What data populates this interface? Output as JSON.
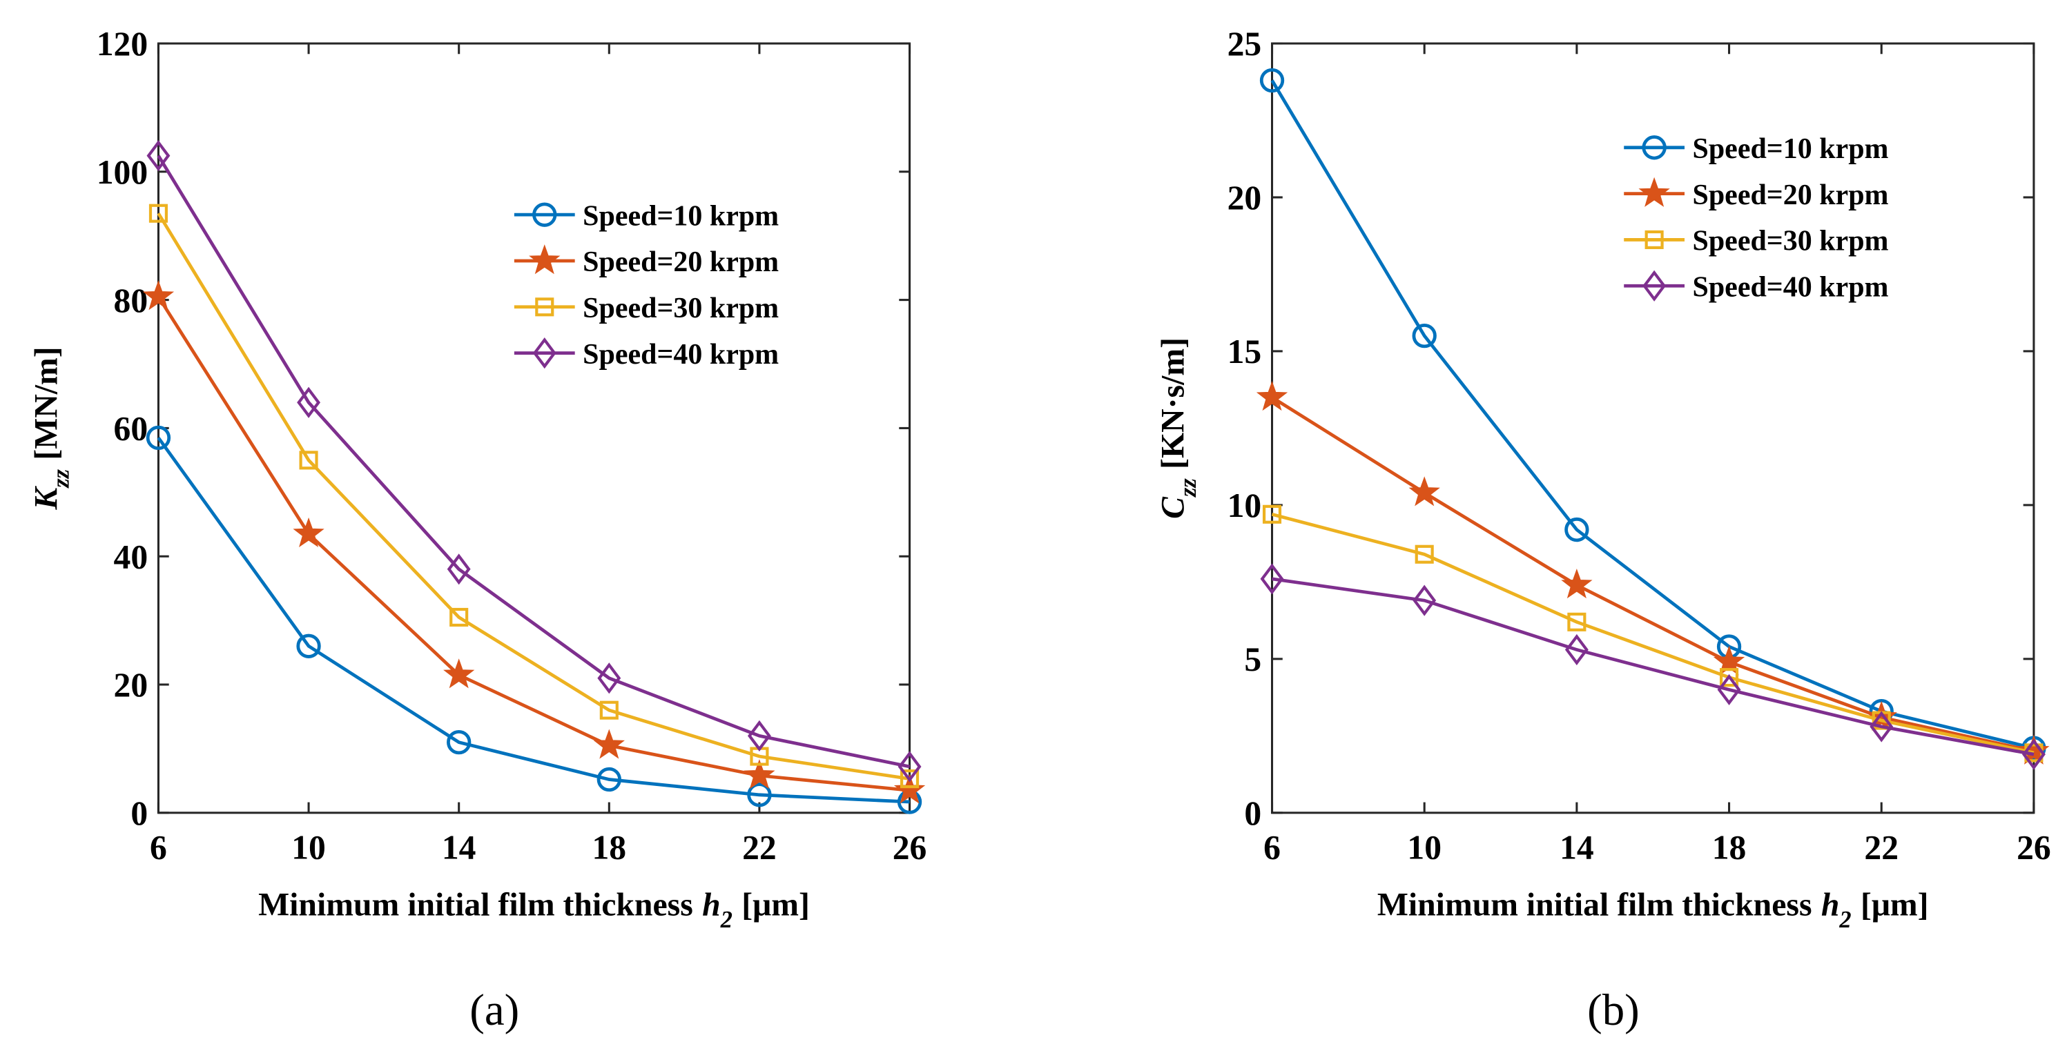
{
  "chart_data": [
    {
      "type": "line",
      "panel_label": "(a)",
      "xlabel": {
        "text": "Minimum initial film thickness",
        "symbol": "h",
        "subscript": "2",
        "unit": "[μm]"
      },
      "ylabel": {
        "symbol": "K",
        "subscript": "zz",
        "unit": "[MN/m]"
      },
      "x": [
        6,
        10,
        14,
        18,
        22,
        26
      ],
      "xlim": [
        6,
        26
      ],
      "xticks": [
        6,
        10,
        14,
        18,
        22,
        26
      ],
      "ylim": [
        0,
        120
      ],
      "yticks": [
        0,
        20,
        40,
        60,
        80,
        100,
        120
      ],
      "legend": "northeast",
      "series": [
        {
          "name": "Speed=10 krpm",
          "color": "#0072BD",
          "marker": "circle",
          "values": [
            58.5,
            26,
            11,
            5.2,
            2.8,
            1.7
          ]
        },
        {
          "name": "Speed=20 krpm",
          "color": "#D95319",
          "marker": "star",
          "values": [
            80.5,
            43.5,
            21.5,
            10.5,
            5.8,
            3.5
          ]
        },
        {
          "name": "Speed=30 krpm",
          "color": "#EDB120",
          "marker": "square",
          "values": [
            93.5,
            55,
            30.5,
            16,
            8.8,
            5.3
          ]
        },
        {
          "name": "Speed=40 krpm",
          "color": "#7E2F8E",
          "marker": "diamond",
          "values": [
            102.5,
            64,
            38,
            21,
            12,
            7.2
          ]
        }
      ]
    },
    {
      "type": "line",
      "panel_label": "(b)",
      "xlabel": {
        "text": "Minimum initial film thickness",
        "symbol": "h",
        "subscript": "2",
        "unit": "[μm]"
      },
      "ylabel": {
        "symbol": "C",
        "subscript": "zz",
        "unit": "[KN·s/m]"
      },
      "x": [
        6,
        10,
        14,
        18,
        22,
        26
      ],
      "xlim": [
        6,
        26
      ],
      "xticks": [
        6,
        10,
        14,
        18,
        22,
        26
      ],
      "ylim": [
        0,
        25
      ],
      "yticks": [
        0,
        5,
        10,
        15,
        20,
        25
      ],
      "legend": "northeast",
      "series": [
        {
          "name": "Speed=10 krpm",
          "color": "#0072BD",
          "marker": "circle",
          "values": [
            23.8,
            15.5,
            9.2,
            5.4,
            3.3,
            2.1
          ]
        },
        {
          "name": "Speed=20 krpm",
          "color": "#D95319",
          "marker": "star",
          "values": [
            13.5,
            10.4,
            7.4,
            4.9,
            3.1,
            2.0
          ]
        },
        {
          "name": "Speed=30 krpm",
          "color": "#EDB120",
          "marker": "square",
          "values": [
            9.7,
            8.4,
            6.2,
            4.4,
            3.0,
            1.95
          ]
        },
        {
          "name": "Speed=40 krpm",
          "color": "#7E2F8E",
          "marker": "diamond",
          "values": [
            7.6,
            6.9,
            5.3,
            4.0,
            2.8,
            1.9
          ]
        }
      ]
    }
  ]
}
